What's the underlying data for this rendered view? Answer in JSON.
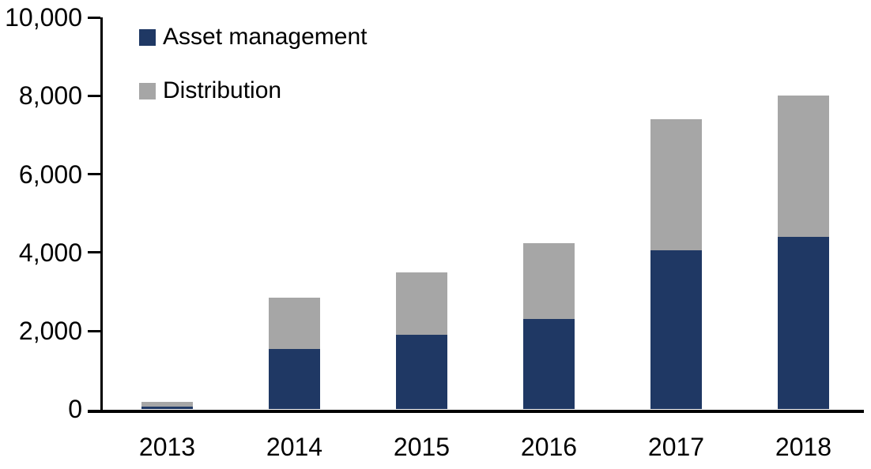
{
  "chart_data": {
    "type": "bar",
    "stacked": true,
    "title": "",
    "xlabel": "",
    "ylabel": "",
    "categories": [
      "2013",
      "2014",
      "2015",
      "2016",
      "2017",
      "2018"
    ],
    "series": [
      {
        "name": "Asset management",
        "color": "#1F3864",
        "values": [
          70,
          1550,
          1900,
          2300,
          4050,
          4400
        ]
      },
      {
        "name": "Distribution",
        "color": "#A6A6A6",
        "values": [
          120,
          1300,
          1600,
          1950,
          3350,
          3600
        ]
      }
    ],
    "ylim": [
      0,
      10000
    ],
    "yticks": [
      0,
      2000,
      4000,
      6000,
      8000,
      10000
    ],
    "ytick_labels": [
      "0",
      "2,000",
      "4,000",
      "6,000",
      "8,000",
      "10,000"
    ],
    "grid": false,
    "legend_position": "top-left-inside",
    "axis_color": "#000000",
    "background_color": "#FFFFFF"
  }
}
